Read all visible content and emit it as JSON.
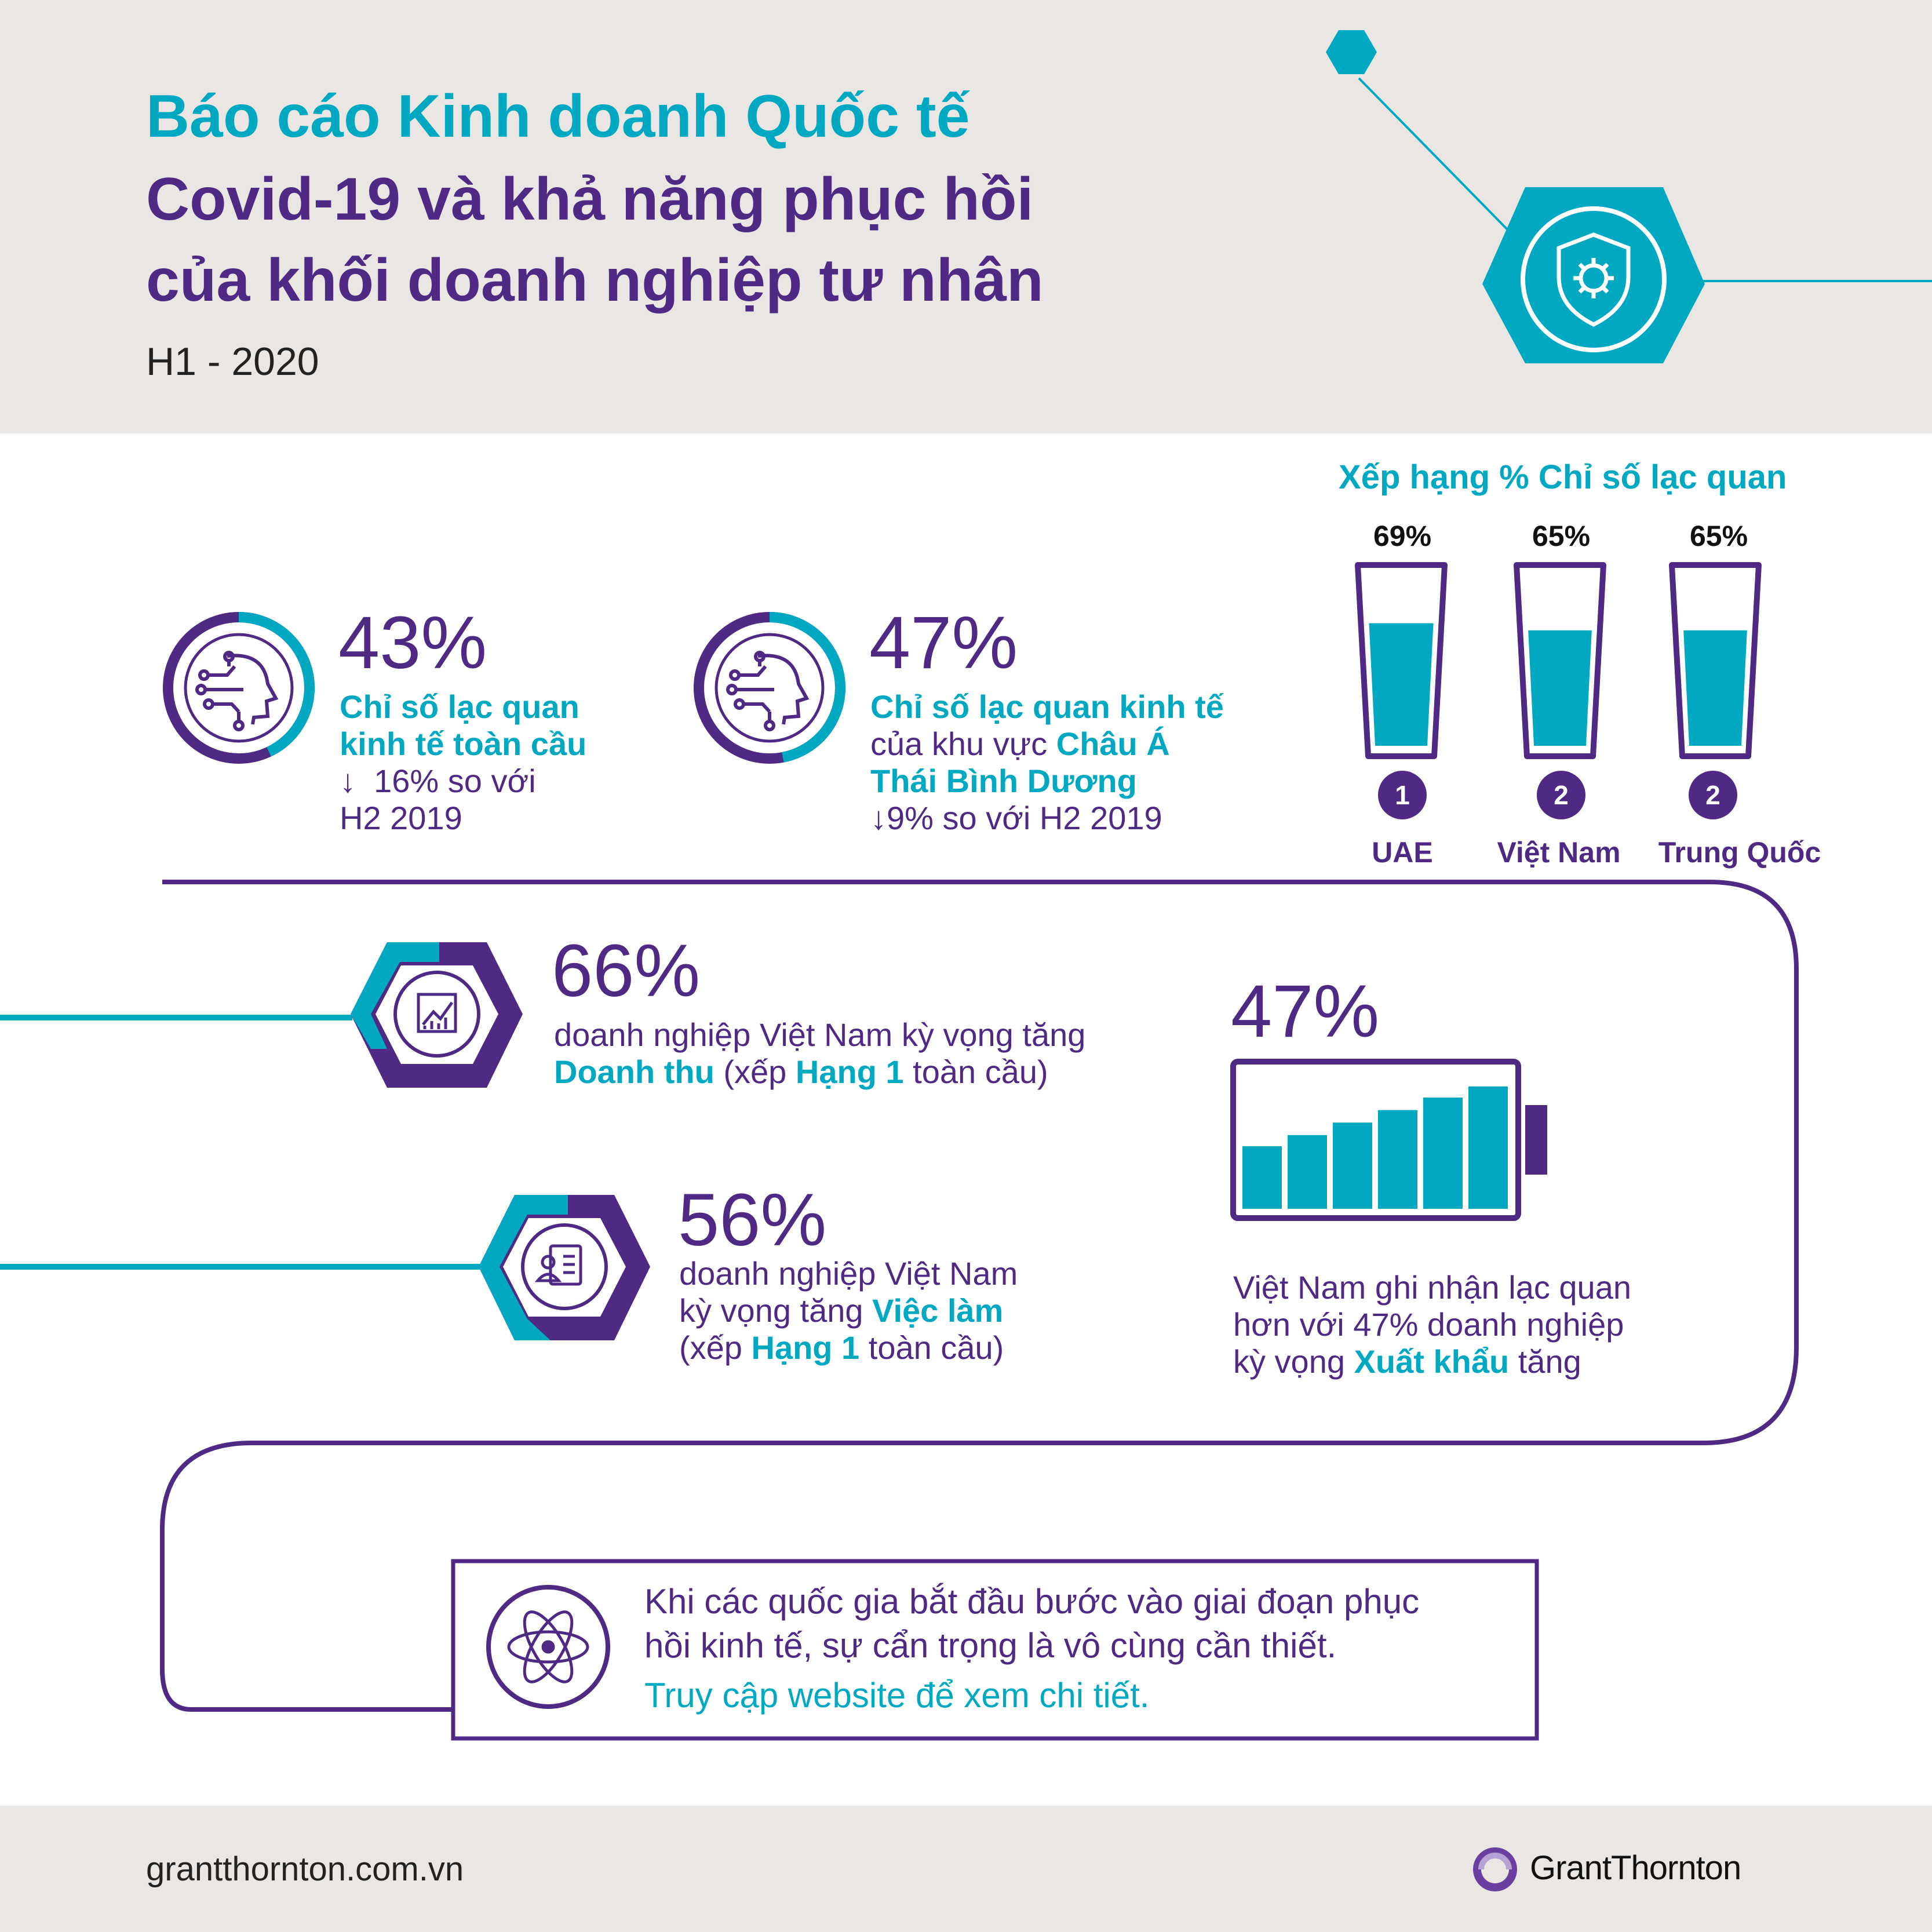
{
  "header": {
    "title_line1": "Báo cáo Kinh doanh Quốc tế",
    "title_line2": "Covid-19 và khả năng phục hồi",
    "title_line3": "của khối doanh nghiệp tư nhân",
    "period": "H1 - 2020"
  },
  "stats": {
    "global": {
      "value": "43%",
      "fraction": 0.43,
      "line1": "Chỉ số lạc quan",
      "line2": "kinh tế toàn cầu",
      "change_arrow": "↓",
      "change_text": "16% so với",
      "change_line2": "H2 2019"
    },
    "apac": {
      "value": "47%",
      "fraction": 0.47,
      "line1": "Chỉ số lạc quan kinh tế",
      "line2_prefix": "của khu vực ",
      "line2_highlight": "Châu Á",
      "line3": "Thái Bình Dương",
      "change": "↓9% so với H2 2019"
    }
  },
  "ranking": {
    "title": "Xếp hạng % Chỉ số lạc quan",
    "items": [
      {
        "value": "69%",
        "fraction": 0.69,
        "rank": "1",
        "country": "UAE"
      },
      {
        "value": "65%",
        "fraction": 0.65,
        "rank": "2",
        "country": "Việt Nam"
      },
      {
        "value": "65%",
        "fraction": 0.65,
        "rank": "2",
        "country": "Trung Quốc"
      }
    ]
  },
  "revenue": {
    "value": "66%",
    "line1": "doanh nghiệp Việt Nam kỳ vọng tăng",
    "hl1": "Doanh thu",
    "mid1": " (xếp ",
    "hl2": "Hạng 1",
    "end": " toàn cầu)"
  },
  "jobs": {
    "value": "56%",
    "line1": "doanh nghiệp Việt Nam",
    "line2_prefix": "kỳ vọng tăng ",
    "hl1": "Việc làm",
    "line3_prefix": "(xếp ",
    "hl2": "Hạng 1",
    "end": " toàn cầu)"
  },
  "export": {
    "value": "47%",
    "line1": "Việt Nam ghi nhận lạc quan",
    "line2": "hơn với 47% doanh nghiệp",
    "line3_prefix": "kỳ vọng ",
    "hl": "Xuất khẩu",
    "line3_suffix": " tăng"
  },
  "cta": {
    "line1": "Khi các quốc gia bắt đầu bước vào giai đoạn phục",
    "line2": "hồi kinh tế, sự cẩn trọng là vô cùng cần thiết.",
    "link": "Truy cập website để xem chi tiết."
  },
  "footer": {
    "url": "grantthornton.com.vn",
    "brand": "GrantThornton"
  },
  "colors": {
    "cyan": "#00a8c2",
    "purple": "#4e2a84",
    "background": "#e9e6e3"
  }
}
